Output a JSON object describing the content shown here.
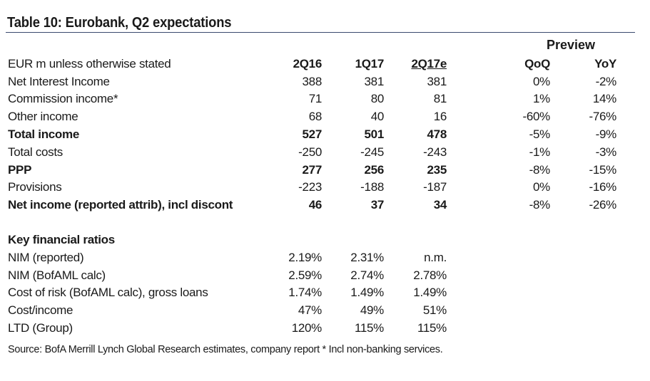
{
  "title": "Table 10: Eurobank, Q2 expectations",
  "preview_label": "Preview",
  "header": {
    "label": "EUR m unless otherwise stated",
    "c1": "2Q16",
    "c2": "1Q17",
    "c3": "2Q17e",
    "c4": "QoQ",
    "c5": "YoY"
  },
  "rows": [
    {
      "label": "Net Interest Income",
      "c1": "388",
      "c2": "381",
      "c3": "381",
      "c4": "0%",
      "c5": "-2%"
    },
    {
      "label": "Commission income*",
      "c1": "71",
      "c2": "80",
      "c3": "81",
      "c4": "1%",
      "c5": "14%"
    },
    {
      "label": "Other income",
      "c1": "68",
      "c2": "40",
      "c3": "16",
      "c4": "-60%",
      "c5": "-76%"
    },
    {
      "label": "Total income",
      "c1": "527",
      "c2": "501",
      "c3": "478",
      "c4": "-5%",
      "c5": "-9%"
    },
    {
      "label": "Total costs",
      "c1": "-250",
      "c2": "-245",
      "c3": "-243",
      "c4": "-1%",
      "c5": "-3%"
    },
    {
      "label": "PPP",
      "c1": "277",
      "c2": "256",
      "c3": "235",
      "c4": "-8%",
      "c5": "-15%"
    },
    {
      "label": "Provisions",
      "c1": "-223",
      "c2": "-188",
      "c3": "-187",
      "c4": "0%",
      "c5": "-16%"
    },
    {
      "label": "Net income (reported attrib), incl discont",
      "c1": "46",
      "c2": "37",
      "c3": "34",
      "c4": "-8%",
      "c5": "-26%"
    }
  ],
  "ratios_title": "Key financial ratios",
  "ratios": [
    {
      "label": "NIM (reported)",
      "c1": "2.19%",
      "c2": "2.31%",
      "c3": "n.m."
    },
    {
      "label": "NIM (BofAML calc)",
      "c1": "2.59%",
      "c2": "2.74%",
      "c3": "2.78%"
    },
    {
      "label": "Cost of risk (BofAML calc), gross loans",
      "c1": "1.74%",
      "c2": "1.49%",
      "c3": "1.49%"
    },
    {
      "label": "Cost/income",
      "c1": "47%",
      "c2": "49%",
      "c3": "51%"
    },
    {
      "label": "LTD (Group)",
      "c1": "120%",
      "c2": "115%",
      "c3": "115%"
    }
  ],
  "source": "Source: BofA Merrill Lynch Global Research estimates, company report * Incl non-banking services."
}
